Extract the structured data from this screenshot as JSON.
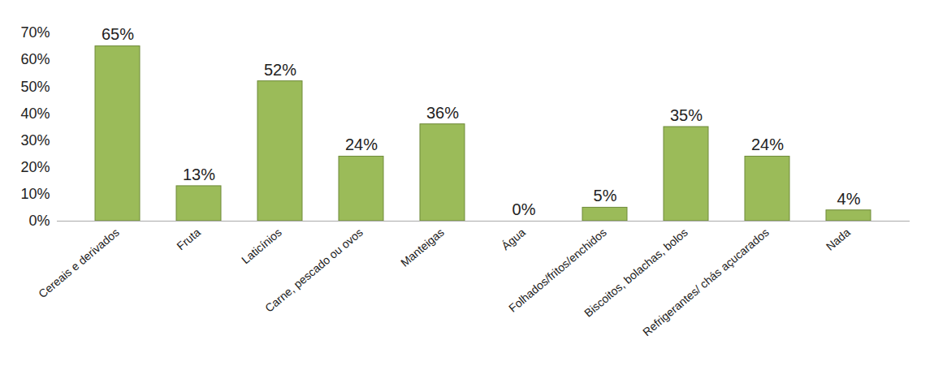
{
  "chart_data": {
    "type": "bar",
    "categories": [
      "Cereais e derivados",
      "Fruta",
      "Laticínios",
      "Carne, pescado ou ovos",
      "Manteigas",
      "Água",
      "Folhados/fritos/enchidos",
      "Biscoitos, bolachas, bolos",
      "Refrigerantes/ chás açucarados",
      "Nada"
    ],
    "values": [
      65,
      13,
      52,
      24,
      36,
      0,
      5,
      35,
      24,
      4
    ],
    "value_labels": [
      "65%",
      "13%",
      "52%",
      "24%",
      "36%",
      "0%",
      "5%",
      "35%",
      "24%",
      "4%"
    ],
    "color": "#9bbb59",
    "ylim": [
      0,
      70
    ],
    "yticks": [
      {
        "value": 0,
        "label": "0%"
      },
      {
        "value": 10,
        "label": "10%"
      },
      {
        "value": 20,
        "label": "20%"
      },
      {
        "value": 30,
        "label": "30%"
      },
      {
        "value": 40,
        "label": "40%"
      },
      {
        "value": 50,
        "label": "50%"
      },
      {
        "value": 60,
        "label": "60%"
      },
      {
        "value": 70,
        "label": "70%"
      }
    ],
    "grid": false,
    "data_labels": true
  }
}
